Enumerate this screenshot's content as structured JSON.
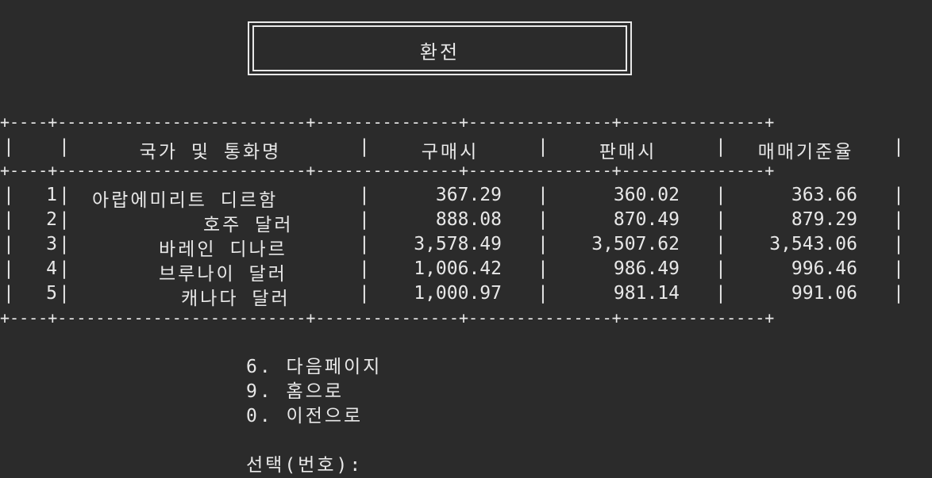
{
  "title": "환전",
  "table": {
    "headers": [
      "",
      "국가 및 통화명",
      "구매시",
      "판매시",
      "매매기준율"
    ],
    "rows": [
      {
        "no": "1",
        "name": "아랍에미리트 디르함",
        "buy": "367.29",
        "sell": "360.02",
        "base": "363.66"
      },
      {
        "no": "2",
        "name": "호주 달러",
        "buy": "888.08",
        "sell": "870.49",
        "base": "879.29"
      },
      {
        "no": "3",
        "name": "바레인 디나르",
        "buy": "3,578.49",
        "sell": "3,507.62",
        "base": "3,543.06"
      },
      {
        "no": "4",
        "name": "브루나이 달러",
        "buy": "1,006.42",
        "sell": "986.49",
        "base": "996.46"
      },
      {
        "no": "5",
        "name": "캐나다 달러",
        "buy": "1,000.97",
        "sell": "981.14",
        "base": "991.06"
      }
    ]
  },
  "menu": {
    "next": "6. 다음페이지",
    "home": "9. 홈으로",
    "back": "0. 이전으로"
  },
  "prompt": "선택(번호):"
}
